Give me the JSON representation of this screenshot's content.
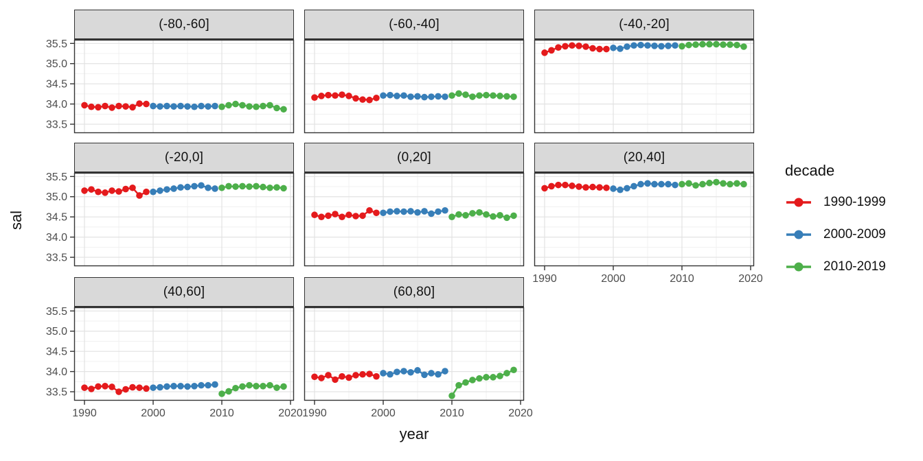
{
  "chart_data": {
    "type": "scatter",
    "title": "",
    "xlabel": "year",
    "ylabel": "sal",
    "x_ticks": [
      "1990",
      "2000",
      "2010",
      "2020"
    ],
    "y_ticks": [
      "35.5",
      "35.0",
      "34.5",
      "34.0",
      "33.5"
    ],
    "x_minor": [
      1995,
      2005,
      2015
    ],
    "y_minor": [
      33.75,
      34.25,
      34.75,
      35.25
    ],
    "xlim": [
      1988.5,
      2020.5
    ],
    "ylim": [
      33.28,
      35.59
    ],
    "grid": true,
    "legend": {
      "title": "decade",
      "position": "right",
      "entries": [
        {
          "label": "1990-1999",
          "color": "#E41A1C"
        },
        {
          "label": "2000-2009",
          "color": "#377EB8"
        },
        {
          "label": "2010-2019",
          "color": "#4DAF4A"
        }
      ]
    },
    "facets": [
      {
        "label": "(-80,-60]",
        "axes": "y",
        "series": [
          {
            "name": "1990-1999",
            "start_year": 1990,
            "values": [
              33.97,
              33.93,
              33.92,
              33.95,
              33.91,
              33.95,
              33.94,
              33.92,
              34.01,
              34.0
            ]
          },
          {
            "name": "2000-2009",
            "start_year": 2000,
            "values": [
              33.95,
              33.94,
              33.95,
              33.94,
              33.95,
              33.94,
              33.93,
              33.95,
              33.94,
              33.95
            ]
          },
          {
            "name": "2010-2019",
            "start_year": 2010,
            "values": [
              33.93,
              33.97,
              34.0,
              33.97,
              33.94,
              33.93,
              33.95,
              33.97,
              33.9,
              33.87
            ]
          }
        ]
      },
      {
        "label": "(-60,-40]",
        "axes": "",
        "series": [
          {
            "name": "1990-1999",
            "start_year": 1990,
            "values": [
              34.16,
              34.2,
              34.22,
              34.21,
              34.23,
              34.2,
              34.14,
              34.11,
              34.1,
              34.15
            ]
          },
          {
            "name": "2000-2009",
            "start_year": 2000,
            "values": [
              34.21,
              34.22,
              34.2,
              34.21,
              34.18,
              34.19,
              34.17,
              34.18,
              34.19,
              34.18
            ]
          },
          {
            "name": "2010-2019",
            "start_year": 2010,
            "values": [
              34.21,
              34.26,
              34.23,
              34.18,
              34.21,
              34.22,
              34.21,
              34.2,
              34.19,
              34.18
            ]
          }
        ]
      },
      {
        "label": "(-40,-20]",
        "axes": "",
        "series": [
          {
            "name": "1990-1999",
            "start_year": 1990,
            "values": [
              35.27,
              35.33,
              35.4,
              35.43,
              35.45,
              35.44,
              35.42,
              35.38,
              35.36,
              35.36
            ]
          },
          {
            "name": "2000-2009",
            "start_year": 2000,
            "values": [
              35.39,
              35.37,
              35.42,
              35.45,
              35.46,
              35.45,
              35.44,
              35.43,
              35.44,
              35.45
            ]
          },
          {
            "name": "2010-2019",
            "start_year": 2010,
            "values": [
              35.43,
              35.46,
              35.47,
              35.48,
              35.48,
              35.48,
              35.47,
              35.47,
              35.46,
              35.42
            ]
          }
        ]
      },
      {
        "label": "(-20,0]",
        "axes": "y",
        "series": [
          {
            "name": "1990-1999",
            "start_year": 1990,
            "values": [
              35.15,
              35.18,
              35.12,
              35.1,
              35.15,
              35.13,
              35.19,
              35.22,
              35.03,
              35.12
            ]
          },
          {
            "name": "2000-2009",
            "start_year": 2000,
            "values": [
              35.12,
              35.15,
              35.18,
              35.2,
              35.23,
              35.24,
              35.26,
              35.28,
              35.22,
              35.2
            ]
          },
          {
            "name": "2010-2019",
            "start_year": 2010,
            "values": [
              35.22,
              35.26,
              35.25,
              35.26,
              35.25,
              35.26,
              35.24,
              35.22,
              35.23,
              35.21
            ]
          }
        ]
      },
      {
        "label": "(0,20]",
        "axes": "",
        "series": [
          {
            "name": "1990-1999",
            "start_year": 1990,
            "values": [
              34.55,
              34.5,
              34.53,
              34.57,
              34.5,
              34.55,
              34.52,
              34.53,
              34.66,
              34.6
            ]
          },
          {
            "name": "2000-2009",
            "start_year": 2000,
            "values": [
              34.6,
              34.63,
              34.64,
              34.63,
              34.64,
              34.61,
              34.64,
              34.58,
              34.63,
              34.66
            ]
          },
          {
            "name": "2010-2019",
            "start_year": 2010,
            "values": [
              34.5,
              34.56,
              34.54,
              34.59,
              34.61,
              34.56,
              34.51,
              34.54,
              34.48,
              34.53
            ]
          }
        ]
      },
      {
        "label": "(20,40]",
        "axes": "x",
        "series": [
          {
            "name": "1990-1999",
            "start_year": 1990,
            "values": [
              35.21,
              35.26,
              35.29,
              35.29,
              35.27,
              35.25,
              35.23,
              35.24,
              35.23,
              35.22
            ]
          },
          {
            "name": "2000-2009",
            "start_year": 2000,
            "values": [
              35.2,
              35.17,
              35.21,
              35.26,
              35.31,
              35.33,
              35.31,
              35.31,
              35.31,
              35.29
            ]
          },
          {
            "name": "2010-2019",
            "start_year": 2010,
            "values": [
              35.31,
              35.33,
              35.28,
              35.31,
              35.34,
              35.36,
              35.33,
              35.31,
              35.33,
              35.31
            ]
          }
        ]
      },
      {
        "label": "(40,60]",
        "axes": "xy",
        "series": [
          {
            "name": "1990-1999",
            "start_year": 1990,
            "values": [
              33.6,
              33.57,
              33.63,
              33.64,
              33.62,
              33.5,
              33.56,
              33.61,
              33.6,
              33.58
            ]
          },
          {
            "name": "2000-2009",
            "start_year": 2000,
            "values": [
              33.6,
              33.61,
              33.63,
              33.64,
              33.64,
              33.63,
              33.64,
              33.66,
              33.66,
              33.68
            ]
          },
          {
            "name": "2010-2019",
            "start_year": 2010,
            "values": [
              33.45,
              33.51,
              33.59,
              33.63,
              33.66,
              33.64,
              33.64,
              33.66,
              33.6,
              33.63
            ]
          }
        ]
      },
      {
        "label": "(60,80]",
        "axes": "x",
        "series": [
          {
            "name": "1990-1999",
            "start_year": 1990,
            "values": [
              33.87,
              33.84,
              33.91,
              33.8,
              33.88,
              33.85,
              33.91,
              33.93,
              33.94,
              33.88
            ]
          },
          {
            "name": "2000-2009",
            "start_year": 2000,
            "values": [
              33.96,
              33.93,
              33.99,
              34.01,
              33.98,
              34.03,
              33.92,
              33.96,
              33.93,
              34.01
            ]
          },
          {
            "name": "2010-2019",
            "start_year": 2010,
            "values": [
              33.4,
              33.66,
              33.73,
              33.79,
              33.83,
              33.86,
              33.86,
              33.89,
              33.96,
              34.04
            ]
          }
        ]
      }
    ]
  }
}
